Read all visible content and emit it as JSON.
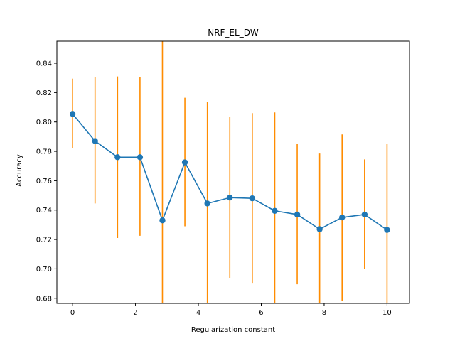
{
  "chart_data": {
    "type": "line",
    "title": "NRF_EL_DW",
    "xlabel": "Regularization constant",
    "ylabel": "Accuracy",
    "xlim": [
      -0.5,
      10.714
    ],
    "ylim": [
      0.6765,
      0.855
    ],
    "xticks": [
      0,
      2,
      4,
      6,
      8,
      10
    ],
    "yticks": [
      0.68,
      0.7,
      0.72,
      0.74,
      0.76,
      0.78,
      0.8,
      0.82,
      0.84
    ],
    "xtick_labels": [
      "0",
      "2",
      "4",
      "6",
      "8",
      "10"
    ],
    "ytick_labels": [
      "0.68",
      "0.70",
      "0.72",
      "0.74",
      "0.76",
      "0.78",
      "0.80",
      "0.82",
      "0.84"
    ],
    "grid": false,
    "colors": {
      "line": "#1f77b4",
      "errorbar": "#ff8c00"
    },
    "series": [
      {
        "x": [
          0,
          0.714,
          1.429,
          2.143,
          2.857,
          3.571,
          4.286,
          5.0,
          5.714,
          6.429,
          7.143,
          7.857,
          8.571,
          9.286,
          10.0
        ],
        "y": [
          0.8055,
          0.787,
          0.776,
          0.776,
          0.733,
          0.7725,
          0.7445,
          0.7485,
          0.748,
          0.7395,
          0.737,
          0.727,
          0.735,
          0.737,
          0.7265
        ],
        "yerr_low": [
          0.782,
          0.7445,
          0.721,
          0.7225,
          0.67,
          0.729,
          0.67,
          0.6935,
          0.69,
          0.67,
          0.6895,
          0.67,
          0.678,
          0.7,
          0.67
        ],
        "yerr_high": [
          0.8295,
          0.8305,
          0.831,
          0.8305,
          0.86,
          0.8165,
          0.8135,
          0.8035,
          0.806,
          0.8065,
          0.785,
          0.7785,
          0.7915,
          0.7745,
          0.785
        ]
      }
    ]
  }
}
